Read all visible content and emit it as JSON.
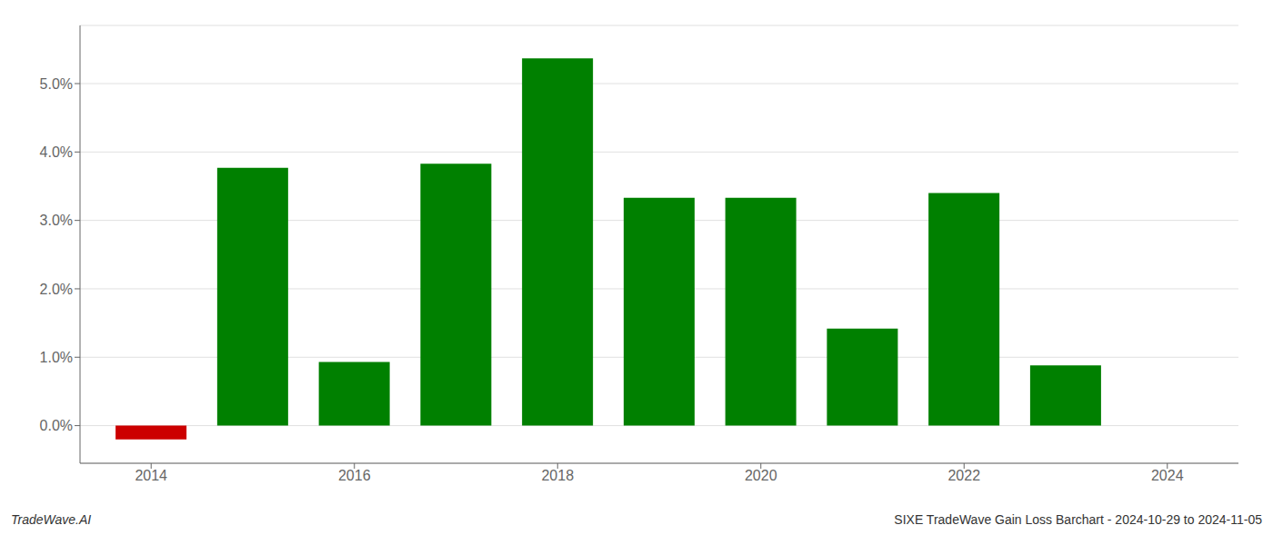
{
  "chart_data": {
    "type": "bar",
    "title": "SIXE TradeWave Gain Loss Barchart - 2024-10-29 to 2024-11-05",
    "annotations": [
      "TradeWave.AI"
    ],
    "x": [
      2014,
      2015,
      2016,
      2017,
      2018,
      2019,
      2020,
      2021,
      2022,
      2023
    ],
    "values": [
      -0.2,
      3.77,
      0.93,
      3.83,
      5.37,
      3.33,
      3.33,
      1.42,
      3.4,
      0.88
    ],
    "colors": [
      "#cc0000",
      "#008000",
      "#008000",
      "#008000",
      "#008000",
      "#008000",
      "#008000",
      "#008000",
      "#008000",
      "#008000"
    ],
    "xlim": [
      2013.3,
      2024.7
    ],
    "xticks": [
      2014,
      2016,
      2018,
      2020,
      2022,
      2024
    ],
    "ylim": [
      -0.55,
      5.85
    ],
    "yticks": [
      {
        "value": 0.0,
        "label": "0.0%"
      },
      {
        "value": 1.0,
        "label": "1.0%"
      },
      {
        "value": 2.0,
        "label": "2.0%"
      },
      {
        "value": 3.0,
        "label": "3.0%"
      },
      {
        "value": 4.0,
        "label": "4.0%"
      },
      {
        "value": 5.0,
        "label": "5.0%"
      }
    ],
    "grid": true
  }
}
